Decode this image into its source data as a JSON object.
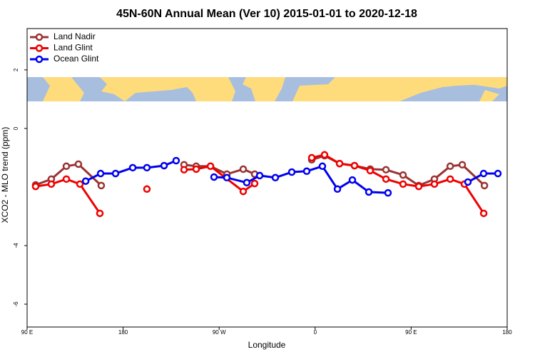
{
  "chart_data": {
    "type": "line",
    "title": "45N-60N Annual Mean (Ver 10)   2015-01-01 to 2020-12-18",
    "x_label": "Longitude",
    "y_label": "XCO2 - MLO trend (ppm)",
    "xlim": [
      90,
      540
    ],
    "xticks": [
      {
        "value": 90,
        "label": "90 E"
      },
      180,
      {
        "value": 270,
        "label": "90 W"
      },
      {
        "value": 360,
        "label": "0"
      },
      {
        "value": 450,
        "label": "90 E"
      },
      {
        "value": 540,
        "label": "180"
      }
    ],
    "ylim": [
      -6.78,
      3.41
    ],
    "yticks": [
      2,
      0,
      -4,
      -6
    ],
    "legend": "top-left",
    "series": [
      {
        "name": "Land Nadir",
        "color": "#993333",
        "x": [
          98.0,
          112.7,
          126.8,
          138.1,
          159.5,
          null,
          237.1,
          248.5,
          261.9,
          277.3,
          292.6,
          303.3,
          null,
          356.8,
          368.8,
          382.9,
          396.9,
          411.6,
          426.4,
          442.4,
          457.1,
          471.8,
          486.6,
          497.9,
          518.7
        ],
        "values": [
          -1.93,
          -1.73,
          -1.29,
          -1.22,
          -1.95,
          null,
          -1.24,
          -1.29,
          -1.29,
          -1.56,
          -1.39,
          -1.56,
          null,
          -1.07,
          -0.93,
          -1.2,
          -1.27,
          -1.39,
          -1.41,
          -1.59,
          -1.95,
          -1.73,
          -1.29,
          -1.24,
          -1.95
        ]
      },
      {
        "name": "Land Glint",
        "color": "#ee0000",
        "x": [
          98.0,
          112.7,
          126.8,
          139.5,
          158.2,
          null,
          202.3,
          null,
          237.1,
          248.5,
          261.9,
          292.6,
          303.3,
          null,
          356.8,
          368.8,
          382.9,
          396.9,
          411.6,
          426.4,
          442.4,
          457.1,
          471.8,
          486.6,
          499.9,
          518.0
        ],
        "values": [
          -1.98,
          -1.9,
          -1.73,
          -1.9,
          -2.9,
          null,
          -2.07,
          null,
          -1.41,
          -1.39,
          -1.29,
          -2.15,
          -1.88,
          null,
          -1.0,
          -0.9,
          -1.2,
          -1.27,
          -1.44,
          -1.73,
          -1.9,
          -1.98,
          -1.9,
          -1.73,
          -1.9,
          -2.9
        ]
      },
      {
        "name": "Ocean Glint",
        "color": "#0000ee",
        "x": [
          144.9,
          158.9,
          172.9,
          189.0,
          202.3,
          218.4,
          229.7,
          null,
          265.2,
          277.2,
          295.9,
          308.0,
          322.7,
          338.1,
          352.1,
          366.8,
          380.9,
          394.9,
          410.3,
          428.3,
          null,
          503.2,
          517.9,
          531.3
        ],
        "values": [
          -1.8,
          -1.54,
          -1.54,
          -1.34,
          -1.34,
          -1.27,
          -1.1,
          null,
          -1.66,
          -1.68,
          -1.85,
          -1.61,
          -1.68,
          -1.49,
          -1.46,
          -1.29,
          -2.07,
          -1.76,
          -2.17,
          -2.2,
          null,
          -1.83,
          -1.54,
          -1.54
        ]
      }
    ]
  }
}
